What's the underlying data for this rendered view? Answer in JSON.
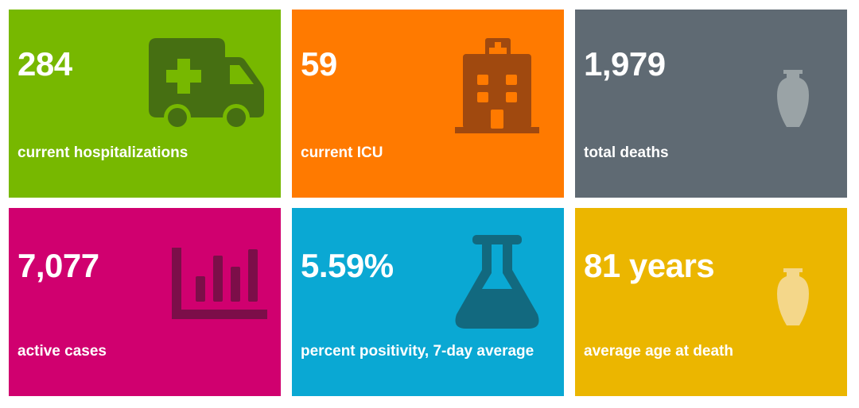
{
  "tiles": [
    {
      "value": "284",
      "label": "current hospitalizations",
      "icon": "ambulance-icon",
      "color": "#77b800"
    },
    {
      "value": "59",
      "label": "current ICU",
      "icon": "hospital-icon",
      "color": "#ff7a00"
    },
    {
      "value": "1,979",
      "label": "total deaths",
      "icon": "urn-icon",
      "color": "#5f6a73"
    },
    {
      "value": "7,077",
      "label": "active cases",
      "icon": "bar-chart-icon",
      "color": "#d0006f"
    },
    {
      "value": "5.59%",
      "label": "percent positivity, 7-day average",
      "icon": "flask-icon",
      "color": "#0aa8d3"
    },
    {
      "value": "81 years",
      "label": "average age at death",
      "icon": "urn-icon",
      "color": "#ebb600"
    }
  ]
}
